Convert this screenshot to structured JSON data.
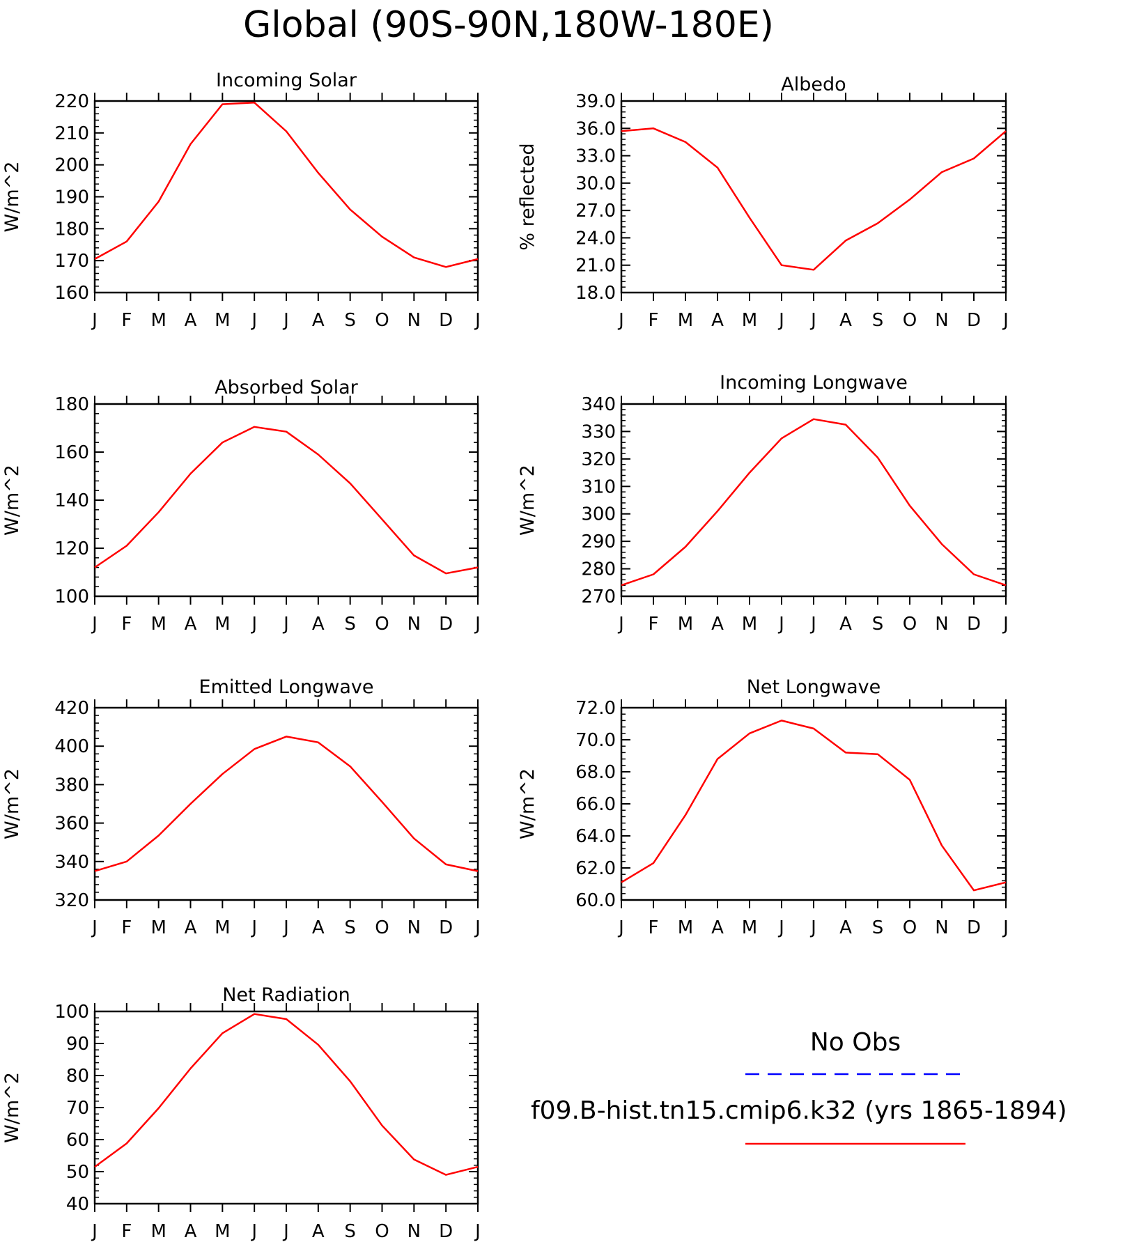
{
  "title": "Global (90S-90N,180W-180E)",
  "colors": {
    "model": "#ff0000",
    "obs": "#0000ff",
    "axis": "#000000"
  },
  "legend": {
    "obs_label": "No Obs",
    "model_label": "f09.B-hist.tn15.cmip6.k32 (yrs 1865-1894)"
  },
  "chart_data": [
    {
      "type": "line",
      "title": "Incoming Solar",
      "ylabel": "W/m^2",
      "ylim": [
        160,
        220
      ],
      "yticks": [
        "160",
        "170",
        "180",
        "190",
        "200",
        "210",
        "220"
      ],
      "categories": [
        "J",
        "F",
        "M",
        "A",
        "M",
        "J",
        "J",
        "A",
        "S",
        "O",
        "N",
        "D",
        "J"
      ],
      "series": [
        {
          "values": [
            170.5,
            176,
            188.5,
            206.5,
            219,
            219.5,
            210.5,
            197.5,
            186,
            177.5,
            171,
            168,
            170.5
          ]
        }
      ]
    },
    {
      "type": "line",
      "title": "Albedo",
      "ylabel": "% reflected",
      "ylim": [
        18,
        39
      ],
      "yticks": [
        "18.0",
        "21.0",
        "24.0",
        "27.0",
        "30.0",
        "33.0",
        "36.0",
        "39.0"
      ],
      "categories": [
        "J",
        "F",
        "M",
        "A",
        "M",
        "J",
        "J",
        "A",
        "S",
        "O",
        "N",
        "D",
        "J"
      ],
      "series": [
        {
          "values": [
            35.7,
            36.0,
            34.5,
            31.7,
            26.2,
            21.0,
            20.5,
            23.7,
            25.6,
            28.2,
            31.2,
            32.7,
            35.7
          ]
        }
      ]
    },
    {
      "type": "line",
      "title": "Absorbed Solar",
      "ylabel": "W/m^2",
      "ylim": [
        100,
        180
      ],
      "yticks": [
        "100",
        "120",
        "140",
        "160",
        "180"
      ],
      "categories": [
        "J",
        "F",
        "M",
        "A",
        "M",
        "J",
        "J",
        "A",
        "S",
        "O",
        "N",
        "D",
        "J"
      ],
      "series": [
        {
          "values": [
            112,
            121,
            135,
            151,
            164,
            170.5,
            168.5,
            159,
            147,
            132,
            117,
            109.5,
            112
          ]
        }
      ]
    },
    {
      "type": "line",
      "title": "Incoming Longwave",
      "ylabel": "W/m^2",
      "ylim": [
        270,
        340
      ],
      "yticks": [
        "270",
        "280",
        "290",
        "300",
        "310",
        "320",
        "330",
        "340"
      ],
      "categories": [
        "J",
        "F",
        "M",
        "A",
        "M",
        "J",
        "J",
        "A",
        "S",
        "O",
        "N",
        "D",
        "J"
      ],
      "series": [
        {
          "values": [
            274,
            278,
            288,
            301,
            315,
            327.5,
            334.5,
            332.5,
            320.5,
            303,
            289,
            278,
            274
          ]
        }
      ]
    },
    {
      "type": "line",
      "title": "Emitted Longwave",
      "ylabel": "W/m^2",
      "ylim": [
        320,
        420
      ],
      "yticks": [
        "320",
        "340",
        "360",
        "380",
        "400",
        "420"
      ],
      "categories": [
        "J",
        "F",
        "M",
        "A",
        "M",
        "J",
        "J",
        "A",
        "S",
        "O",
        "N",
        "D",
        "J"
      ],
      "series": [
        {
          "values": [
            335,
            340,
            353.5,
            370,
            385.5,
            398.5,
            405,
            402,
            389.5,
            371,
            352,
            338.5,
            335
          ]
        }
      ]
    },
    {
      "type": "line",
      "title": "Net Longwave",
      "ylabel": "W/m^2",
      "ylim": [
        60,
        72
      ],
      "yticks": [
        "60.0",
        "62.0",
        "64.0",
        "66.0",
        "68.0",
        "70.0",
        "72.0"
      ],
      "categories": [
        "J",
        "F",
        "M",
        "A",
        "M",
        "J",
        "J",
        "A",
        "S",
        "O",
        "N",
        "D",
        "J"
      ],
      "series": [
        {
          "values": [
            61.1,
            62.3,
            65.3,
            68.8,
            70.4,
            71.2,
            70.7,
            69.2,
            69.1,
            67.5,
            63.4,
            60.6,
            61.1
          ]
        }
      ]
    },
    {
      "type": "line",
      "title": "Net Radiation",
      "ylabel": "W/m^2",
      "ylim": [
        40,
        100
      ],
      "yticks": [
        "40",
        "50",
        "60",
        "70",
        "80",
        "90",
        "100"
      ],
      "categories": [
        "J",
        "F",
        "M",
        "A",
        "M",
        "J",
        "J",
        "A",
        "S",
        "O",
        "N",
        "D",
        "J"
      ],
      "series": [
        {
          "values": [
            51.5,
            58.8,
            69.8,
            82.2,
            93.2,
            99.2,
            97.6,
            89.6,
            78.2,
            64.4,
            53.8,
            49,
            51.5
          ]
        }
      ]
    }
  ]
}
